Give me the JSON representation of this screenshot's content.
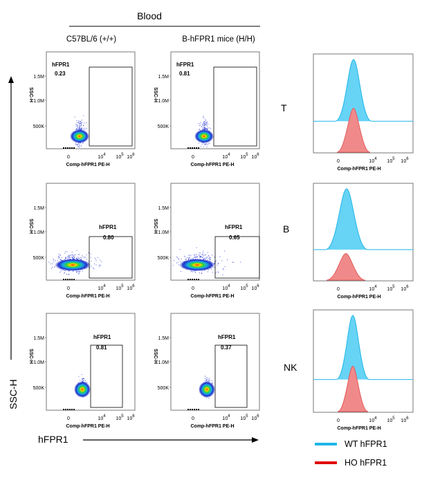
{
  "header": {
    "title": "Blood",
    "col1": "C57BL/6 (+/+)",
    "col2": "B-hFPR1 mice (H/H)"
  },
  "axes": {
    "y_main": "SSC-H",
    "x_main": "hFPR1",
    "dot_ylabel": "SSC-H",
    "dot_xlabel": "Comp-hFPR1 PE-H",
    "hist_xlabel": "Comp-hFPR1 PE-H",
    "yticks": [
      "1.5M",
      "1.0M",
      "500K"
    ],
    "xticks": [
      {
        "base": "0",
        "exp": ""
      },
      {
        "base": "10",
        "exp": "4"
      },
      {
        "base": "10",
        "exp": "5"
      },
      {
        "base": "10",
        "exp": "6"
      }
    ]
  },
  "legend": {
    "wt": {
      "label": "WT hFPR1",
      "color": "#1fb6e8"
    },
    "ho": {
      "label": "HO hFPR1",
      "color": "#e00000"
    }
  },
  "chart_data": {
    "type": "scatter",
    "gate_name": "hFPR1",
    "rows": [
      {
        "cell_type": "T",
        "wt_percent": 0.23,
        "ho_percent": 0.81
      },
      {
        "cell_type": "B",
        "wt_percent": 0.8,
        "ho_percent": 0.65
      },
      {
        "cell_type": "NK",
        "wt_percent": 0.81,
        "ho_percent": 0.37
      }
    ]
  },
  "rows": [
    {
      "label": "T",
      "wt_val": "0.23",
      "ho_val": "0.81",
      "gate_text": "hFPR1"
    },
    {
      "label": "B",
      "wt_val": "0.80",
      "ho_val": "0.65",
      "gate_text": "hFPR1"
    },
    {
      "label": "NK",
      "wt_val": "0.81",
      "ho_val": "0.37",
      "gate_text": "hFPR1"
    }
  ]
}
